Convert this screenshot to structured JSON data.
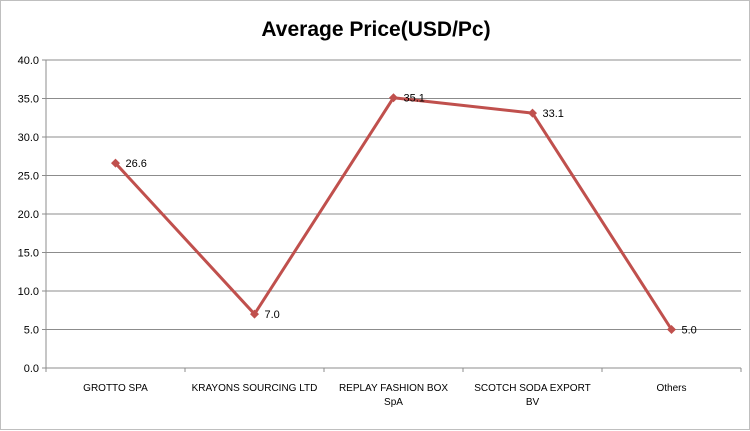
{
  "chart_data": {
    "type": "line",
    "title": "Average Price(USD/Pc)",
    "xlabel": "",
    "ylabel": "",
    "categories": [
      "GROTTO SPA",
      "KRAYONS SOURCING  LTD",
      "REPLAY FASHION  BOX SpA",
      "SCOTCH SODA EXPORT BV",
      "Others"
    ],
    "category_lines": [
      [
        "GROTTO SPA"
      ],
      [
        "KRAYONS SOURCING  LTD"
      ],
      [
        "REPLAY FASHION  BOX",
        "SpA"
      ],
      [
        "SCOTCH SODA EXPORT",
        "BV"
      ],
      [
        "Others"
      ]
    ],
    "series": [
      {
        "values": [
          26.6,
          7.0,
          35.1,
          33.1,
          5.0
        ],
        "color": "#c0504d"
      }
    ],
    "data_labels": [
      "26.6",
      "7.0",
      "35.1",
      "33.1",
      "5.0"
    ],
    "ylim": [
      0,
      40
    ],
    "yticks": [
      "0.0",
      "5.0",
      "10.0",
      "15.0",
      "20.0",
      "25.0",
      "30.0",
      "35.0",
      "40.0"
    ],
    "grid": "horizontal",
    "legend": "none"
  }
}
